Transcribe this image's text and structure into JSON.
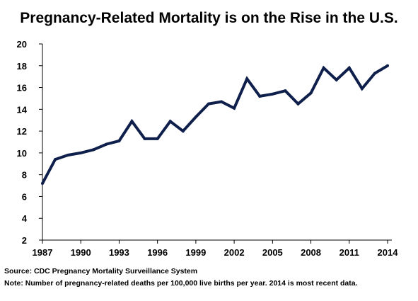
{
  "chart_data": {
    "type": "line",
    "title": "Pregnancy-Related Mortality is on the Rise in the U.S.",
    "xlabel": "",
    "ylabel": "",
    "xlim": [
      1987,
      2014
    ],
    "ylim": [
      2,
      20
    ],
    "x_ticks": [
      1987,
      1990,
      1993,
      1996,
      1999,
      2002,
      2005,
      2008,
      2011,
      2014
    ],
    "y_ticks": [
      2,
      4,
      6,
      8,
      10,
      12,
      14,
      16,
      18,
      20
    ],
    "grid": false,
    "series": [
      {
        "name": "",
        "color": "#0f1f4b",
        "x": [
          1987,
          1988,
          1989,
          1990,
          1991,
          1992,
          1993,
          1994,
          1995,
          1996,
          1997,
          1998,
          1999,
          2000,
          2001,
          2002,
          2003,
          2004,
          2005,
          2006,
          2007,
          2008,
          2009,
          2010,
          2011,
          2012,
          2013,
          2014
        ],
        "y": [
          7.2,
          9.4,
          9.8,
          10.0,
          10.3,
          10.8,
          11.1,
          12.9,
          11.3,
          11.3,
          12.9,
          12.0,
          13.3,
          14.5,
          14.7,
          14.1,
          16.8,
          15.2,
          15.4,
          15.7,
          14.5,
          15.5,
          17.8,
          16.7,
          17.8,
          15.9,
          17.3,
          18.0
        ]
      }
    ]
  },
  "footnotes": {
    "source": "Source: CDC Pregnancy Mortality Surveillance System",
    "note": "Note: Number of pregnancy-related deaths per 100,000 live births per year. 2014 is most recent data."
  }
}
